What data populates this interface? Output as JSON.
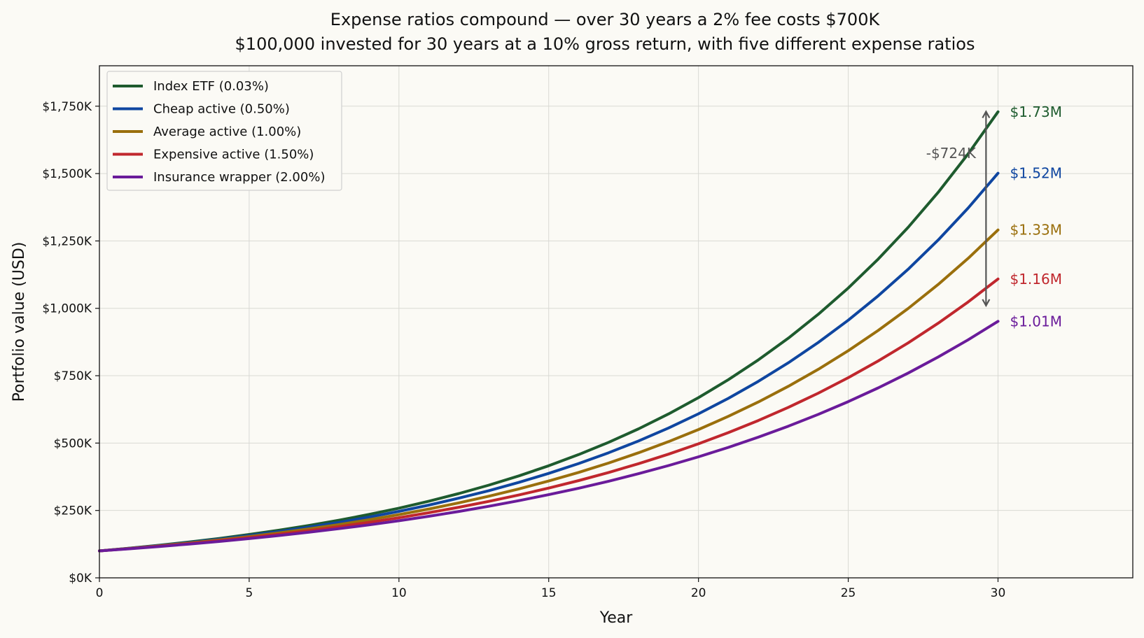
{
  "chart_data": {
    "type": "line",
    "title": "Expense ratios compound — over 30 years a 2% fee costs $700K",
    "subtitle": "$100,000 invested for 30 years at a 10% gross return, with five different expense ratios",
    "xlabel": "Year",
    "ylabel": "Portfolio value (USD)",
    "xlim": [
      0,
      34.5
    ],
    "ylim": [
      0,
      1900000
    ],
    "x_ticks": [
      0,
      5,
      10,
      15,
      20,
      25,
      30
    ],
    "x_tick_labels": [
      "0",
      "5",
      "10",
      "15",
      "20",
      "25",
      "30"
    ],
    "y_ticks": [
      0,
      250000,
      500000,
      750000,
      1000000,
      1250000,
      1500000,
      1750000
    ],
    "y_tick_labels": [
      "$0K",
      "$250K",
      "$500K",
      "$750K",
      "$1,000K",
      "$1,250K",
      "$1,500K",
      "$1,750K"
    ],
    "grid": true,
    "legend_position": "top-left",
    "initial_value": 100000,
    "gross_return": 0.1,
    "years": 30,
    "series": [
      {
        "name": "Index ETF (0.03%)",
        "expense_ratio": 0.0003,
        "color": "#1e5b2e",
        "end_label": "$1.73M"
      },
      {
        "name": "Cheap active (0.50%)",
        "expense_ratio": 0.005,
        "color": "#0f46a0",
        "end_label": "$1.52M"
      },
      {
        "name": "Average active (1.00%)",
        "expense_ratio": 0.01,
        "color": "#9a6f0c",
        "end_label": "$1.33M"
      },
      {
        "name": "Expensive active (1.50%)",
        "expense_ratio": 0.015,
        "color": "#c0272d",
        "end_label": "$1.16M"
      },
      {
        "name": "Insurance wrapper (2.00%)",
        "expense_ratio": 0.02,
        "color": "#6a1b9a",
        "end_label": "$1.01M"
      }
    ],
    "annotation": {
      "text": "-$724K",
      "x": 29.6,
      "y_top": 1730000,
      "y_bottom": 1010000,
      "color": "#555555"
    }
  }
}
